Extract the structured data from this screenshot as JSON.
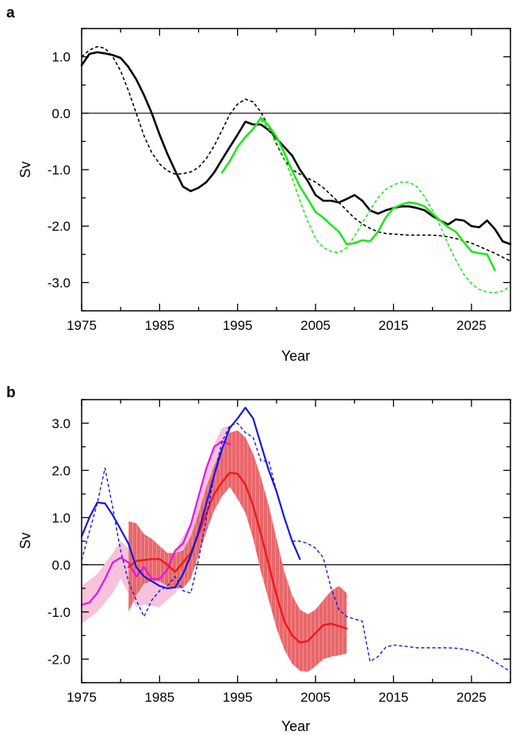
{
  "chart_data": [
    {
      "panel": "a",
      "type": "line",
      "xlabel": "Year",
      "ylabel": "Sv",
      "xlim": [
        1975,
        2030
      ],
      "ylim": [
        -3.5,
        1.5
      ],
      "xticks": [
        1975,
        1985,
        1995,
        2005,
        2015,
        2025
      ],
      "xtick_labels": [
        "1975",
        "1985",
        "1995",
        "2005",
        "2015",
        "2025"
      ],
      "yticks": [
        1.0,
        0.0,
        -1.0,
        -2.0,
        -3.0
      ],
      "ytick_labels": [
        "1.0",
        "0.0",
        "-1.0",
        "-2.0",
        "-3.0"
      ],
      "zero_line": true,
      "series": [
        {
          "color": "#000000",
          "style": "solid",
          "width": 2.6,
          "x": [
            1975,
            1976,
            1977,
            1978,
            1979,
            1980,
            1981,
            1982,
            1983,
            1984,
            1985,
            1986,
            1987,
            1988,
            1989,
            1990,
            1991,
            1992,
            1993,
            1994,
            1995,
            1996,
            1997,
            1998,
            1999,
            2000,
            2001,
            2002,
            2003,
            2004,
            2005,
            2006,
            2007,
            2008,
            2009,
            2010,
            2011,
            2012,
            2013,
            2014,
            2015,
            2016,
            2017,
            2018,
            2019,
            2020,
            2021,
            2022,
            2023,
            2024,
            2025,
            2026,
            2027,
            2028,
            2029,
            2030
          ],
          "y": [
            0.85,
            1.05,
            1.08,
            1.06,
            1.03,
            0.98,
            0.82,
            0.6,
            0.32,
            0.0,
            -0.38,
            -0.72,
            -1.02,
            -1.3,
            -1.38,
            -1.32,
            -1.22,
            -1.05,
            -0.82,
            -0.6,
            -0.38,
            -0.15,
            -0.2,
            -0.2,
            -0.3,
            -0.45,
            -0.6,
            -0.75,
            -1.0,
            -1.2,
            -1.45,
            -1.55,
            -1.55,
            -1.58,
            -1.52,
            -1.45,
            -1.55,
            -1.72,
            -1.78,
            -1.72,
            -1.68,
            -1.65,
            -1.65,
            -1.68,
            -1.72,
            -1.82,
            -1.9,
            -1.97,
            -1.88,
            -1.9,
            -2.0,
            -2.02,
            -1.9,
            -2.05,
            -2.27,
            -2.32
          ]
        },
        {
          "color": "#000000",
          "style": "dashed",
          "width": 1.6,
          "x": [
            1975,
            1976,
            1977,
            1978,
            1979,
            1980,
            1981,
            1982,
            1983,
            1984,
            1985,
            1986,
            1987,
            1988,
            1989,
            1990,
            1991,
            1992,
            1993,
            1994,
            1995,
            1996,
            1997,
            1998,
            1999,
            2000,
            2001,
            2002,
            2003,
            2004,
            2005,
            2006,
            2007,
            2008,
            2009,
            2010,
            2011,
            2012,
            2013,
            2014,
            2015,
            2016,
            2017,
            2018,
            2019,
            2020,
            2021,
            2022,
            2023,
            2024,
            2025,
            2026,
            2027,
            2028,
            2029,
            2030
          ],
          "y": [
            1.0,
            1.12,
            1.18,
            1.15,
            1.0,
            0.75,
            0.4,
            0.0,
            -0.4,
            -0.7,
            -0.9,
            -1.02,
            -1.08,
            -1.07,
            -1.04,
            -0.96,
            -0.8,
            -0.58,
            -0.3,
            -0.02,
            0.16,
            0.25,
            0.2,
            0.02,
            -0.25,
            -0.55,
            -0.82,
            -1.0,
            -1.08,
            -1.15,
            -1.22,
            -1.32,
            -1.45,
            -1.58,
            -1.72,
            -1.86,
            -1.96,
            -2.04,
            -2.1,
            -2.13,
            -2.14,
            -2.15,
            -2.16,
            -2.16,
            -2.16,
            -2.16,
            -2.17,
            -2.19,
            -2.22,
            -2.26,
            -2.3,
            -2.36,
            -2.42,
            -2.48,
            -2.55,
            -2.62
          ]
        },
        {
          "color": "#22e51c",
          "style": "solid",
          "width": 2.6,
          "x": [
            1993,
            1994,
            1995,
            1996,
            1997,
            1998,
            1999,
            2000,
            2001,
            2002,
            2003,
            2004,
            2005,
            2006,
            2007,
            2008,
            2009,
            2010,
            2011,
            2012,
            2013,
            2014,
            2015,
            2016,
            2017,
            2018,
            2019,
            2020,
            2021,
            2022,
            2023,
            2024,
            2025,
            2026,
            2027,
            2028
          ],
          "y": [
            -1.05,
            -0.85,
            -0.6,
            -0.42,
            -0.28,
            -0.08,
            -0.22,
            -0.42,
            -0.7,
            -1.02,
            -1.3,
            -1.52,
            -1.75,
            -1.85,
            -1.98,
            -2.1,
            -2.32,
            -2.3,
            -2.25,
            -2.27,
            -2.1,
            -1.85,
            -1.68,
            -1.62,
            -1.58,
            -1.6,
            -1.65,
            -1.78,
            -1.9,
            -2.02,
            -2.1,
            -2.28,
            -2.45,
            -2.48,
            -2.5,
            -2.78
          ]
        },
        {
          "color": "#22e51c",
          "style": "dashed",
          "width": 1.6,
          "x": [
            1998,
            1999,
            2000,
            2001,
            2002,
            2003,
            2004,
            2005,
            2006,
            2007,
            2008,
            2009,
            2010,
            2011,
            2012,
            2013,
            2014,
            2015,
            2016,
            2017,
            2018,
            2019,
            2020,
            2021,
            2022,
            2023,
            2024,
            2025,
            2026,
            2027,
            2028,
            2029,
            2030
          ],
          "y": [
            -0.12,
            -0.28,
            -0.52,
            -0.8,
            -1.15,
            -1.55,
            -1.92,
            -2.22,
            -2.38,
            -2.45,
            -2.47,
            -2.38,
            -2.18,
            -1.95,
            -1.72,
            -1.5,
            -1.35,
            -1.27,
            -1.22,
            -1.22,
            -1.3,
            -1.48,
            -1.72,
            -2.0,
            -2.32,
            -2.6,
            -2.85,
            -3.02,
            -3.12,
            -3.17,
            -3.18,
            -3.15,
            -3.06
          ]
        }
      ]
    },
    {
      "panel": "b",
      "type": "line",
      "xlabel": "Year",
      "ylabel": "Sv",
      "xlim": [
        1975,
        2030
      ],
      "ylim": [
        -2.5,
        3.5
      ],
      "xticks": [
        1975,
        1985,
        1995,
        2005,
        2015,
        2025
      ],
      "xtick_labels": [
        "1975",
        "1985",
        "1995",
        "2005",
        "2015",
        "2025"
      ],
      "yticks": [
        3.0,
        2.0,
        1.0,
        0.0,
        -1.0,
        -2.0
      ],
      "ytick_labels": [
        "3.0",
        "2.0",
        "1.0",
        "0.0",
        "-1.0",
        "-2.0"
      ],
      "zero_line": true,
      "bands": [
        {
          "color": "#f7c2dc",
          "x": [
            1975,
            1977,
            1979,
            1980,
            1981,
            1982,
            1983,
            1985,
            1987,
            1989,
            1990,
            1991,
            1992,
            1993,
            1994
          ],
          "upper": [
            -0.45,
            -0.2,
            0.25,
            0.5,
            0.35,
            0.05,
            -0.05,
            -0.05,
            0.3,
            0.9,
            1.5,
            2.1,
            2.55,
            2.9,
            2.95
          ],
          "lower": [
            -1.25,
            -1.0,
            -0.6,
            -0.3,
            -0.6,
            -0.9,
            -0.85,
            -0.9,
            -0.6,
            -0.1,
            0.6,
            1.25,
            1.7,
            2.05,
            2.15
          ]
        },
        {
          "color": "#e8676b",
          "hatch": true,
          "x": [
            1981,
            1982,
            1983,
            1984,
            1985,
            1986,
            1987,
            1988,
            1989,
            1990,
            1991,
            1992,
            1993,
            1994,
            1995,
            1996,
            1997,
            1998,
            1999,
            2000,
            2001,
            2002,
            2003,
            2004,
            2005,
            2006,
            2007,
            2008,
            2009
          ],
          "upper": [
            0.92,
            0.88,
            0.65,
            0.55,
            0.4,
            0.25,
            0.25,
            0.3,
            0.6,
            1.1,
            1.65,
            2.1,
            2.5,
            2.8,
            2.85,
            2.7,
            2.35,
            1.85,
            1.25,
            0.55,
            -0.15,
            -0.65,
            -0.95,
            -1.05,
            -0.95,
            -0.75,
            -0.55,
            -0.45,
            -0.6
          ],
          "lower": [
            -1.0,
            -0.65,
            -0.4,
            -0.35,
            -0.35,
            -0.45,
            -0.5,
            -0.5,
            -0.3,
            0.2,
            0.7,
            1.15,
            1.45,
            1.65,
            1.4,
            1.1,
            0.55,
            -0.15,
            -0.75,
            -1.35,
            -1.8,
            -2.1,
            -2.25,
            -2.27,
            -2.15,
            -2.0,
            -1.95,
            -1.92,
            -1.88
          ]
        }
      ],
      "series": [
        {
          "color": "#e413e4",
          "style": "solid",
          "width": 2.2,
          "x": [
            1975,
            1976,
            1977,
            1978,
            1979,
            1980,
            1981,
            1982,
            1983,
            1984,
            1985,
            1986,
            1987,
            1988,
            1989,
            1990,
            1991,
            1992,
            1993,
            1994
          ],
          "y": [
            -0.85,
            -0.8,
            -0.6,
            -0.3,
            0.05,
            0.15,
            0.05,
            -0.25,
            -0.05,
            -0.3,
            -0.3,
            -0.1,
            0.3,
            0.45,
            0.85,
            1.45,
            2.05,
            2.5,
            2.62,
            2.55
          ]
        },
        {
          "color": "#ee1a1a",
          "style": "solid",
          "width": 2.4,
          "x": [
            1981,
            1982,
            1983,
            1984,
            1985,
            1986,
            1987,
            1988,
            1989,
            1990,
            1991,
            1992,
            1993,
            1994,
            1995,
            1996,
            1997,
            1998,
            1999,
            2000,
            2001,
            2002,
            2003,
            2004,
            2005,
            2006,
            2007,
            2008,
            2009
          ],
          "y": [
            -0.05,
            0.08,
            0.1,
            0.12,
            0.12,
            0.0,
            -0.15,
            0.05,
            0.25,
            0.65,
            1.1,
            1.5,
            1.75,
            1.95,
            1.93,
            1.7,
            1.25,
            0.65,
            0.0,
            -0.65,
            -1.2,
            -1.5,
            -1.65,
            -1.62,
            -1.45,
            -1.28,
            -1.25,
            -1.3,
            -1.35
          ]
        },
        {
          "color": "#1717dd",
          "style": "solid",
          "width": 2.2,
          "x": [
            1975,
            1976,
            1977,
            1978,
            1979,
            1980,
            1981,
            1982,
            1983,
            1984,
            1985,
            1986,
            1987,
            1988,
            1989,
            1990,
            1991,
            1992,
            1993,
            1994,
            1995,
            1996,
            1997,
            1998,
            1999,
            2000,
            2001,
            2002,
            2003
          ],
          "y": [
            0.6,
            1.0,
            1.32,
            1.3,
            1.05,
            0.75,
            0.45,
            -0.05,
            -0.25,
            -0.35,
            -0.45,
            -0.5,
            -0.48,
            -0.2,
            0.2,
            0.7,
            1.3,
            1.9,
            2.45,
            2.9,
            3.1,
            3.33,
            3.1,
            2.55,
            2.0,
            1.55,
            1.0,
            0.5,
            0.12
          ]
        },
        {
          "color": "#1717dd",
          "style": "dashed",
          "width": 1.4,
          "x": [
            1975,
            1976,
            1977,
            1978,
            1979,
            1980,
            1981,
            1982,
            1983,
            1984,
            1985,
            1986,
            1987,
            1988,
            1989,
            1990,
            1991,
            1992,
            1993,
            1994,
            1995,
            1996,
            1997,
            1998,
            1999,
            2000,
            2001,
            2002,
            2003,
            2004,
            2005,
            2006,
            2007,
            2008,
            2009,
            2010,
            2011,
            2012,
            2013,
            2014,
            2015,
            2016,
            2017,
            2018,
            2019,
            2020,
            2021,
            2022,
            2023,
            2024,
            2025,
            2026,
            2027,
            2028,
            2029,
            2030
          ],
          "y": [
            0.1,
            0.7,
            1.3,
            2.05,
            1.2,
            0.3,
            -0.35,
            -0.75,
            -1.1,
            -0.75,
            -0.55,
            -0.45,
            -0.25,
            -0.55,
            -0.6,
            0.1,
            1.0,
            1.9,
            2.6,
            2.95,
            3.0,
            2.8,
            2.7,
            2.2,
            2.2,
            1.55,
            1.0,
            0.5,
            0.5,
            0.45,
            0.35,
            0.15,
            -0.5,
            -0.95,
            -1.1,
            -1.15,
            -1.2,
            -2.05,
            -1.95,
            -1.75,
            -1.7,
            -1.72,
            -1.74,
            -1.76,
            -1.76,
            -1.76,
            -1.76,
            -1.76,
            -1.77,
            -1.79,
            -1.82,
            -1.88,
            -1.96,
            -2.06,
            -2.16,
            -2.27
          ]
        }
      ]
    }
  ],
  "panel_labels": [
    "a",
    "b"
  ]
}
